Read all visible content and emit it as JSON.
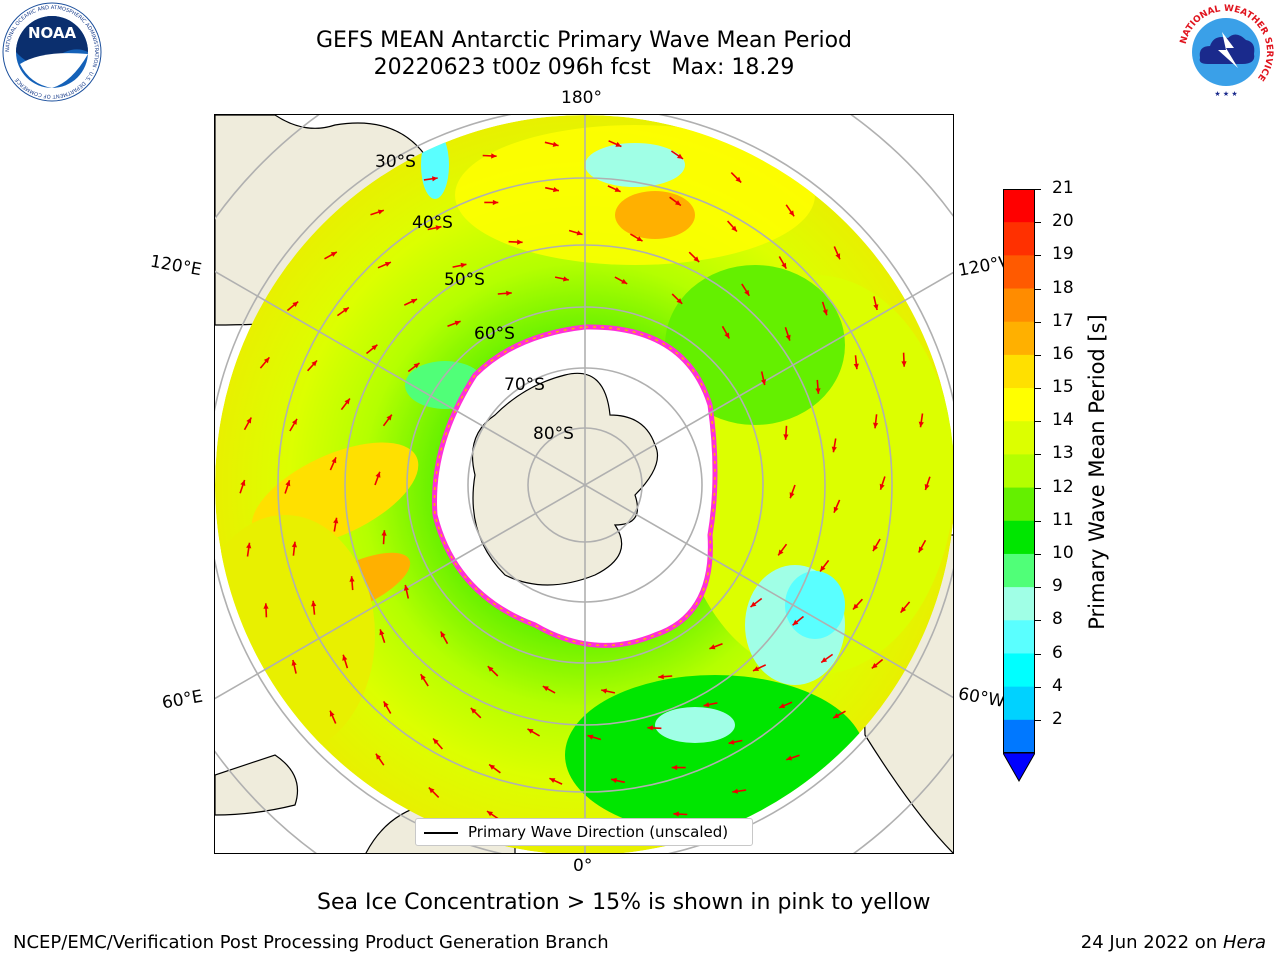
{
  "header": {
    "title_line1": "GEFS MEAN Antarctic Primary Wave Mean Period",
    "title_line2": "20220623 t00z 096h fcst   Max: 18.29"
  },
  "logos": {
    "noaa": "NOAA",
    "noaa_ring": "NATIONAL OCEANIC AND ATMOSPHERIC ADMINISTRATION · U.S. DEPARTMENT OF COMMERCE",
    "nws_ring": "NATIONAL WEATHER SERVICE"
  },
  "map": {
    "longitude_labels": {
      "top": "180°",
      "bottom": "0°",
      "left_upper": "120°E",
      "left_lower": "60°E",
      "right_upper": "120°W",
      "right_lower": "60°W"
    },
    "latitude_labels": [
      "30°S",
      "40°S",
      "50°S",
      "60°S",
      "70°S",
      "80°S"
    ],
    "legend_label": "Primary Wave Direction (unscaled)"
  },
  "colorbar": {
    "label": "Primary Wave Mean Period [s]",
    "ticks": [
      "21",
      "20",
      "19",
      "18",
      "17",
      "16",
      "15",
      "14",
      "13",
      "12",
      "11",
      "10",
      "9",
      "8",
      "6",
      "4",
      "2"
    ],
    "colors": [
      "#ff0000",
      "#ff3000",
      "#ff5a00",
      "#ff8c00",
      "#ffb000",
      "#ffe000",
      "#ffff00",
      "#dcff00",
      "#b4ff00",
      "#64f000",
      "#00e600",
      "#50ff78",
      "#a0ffe6",
      "#5affff",
      "#00ffff",
      "#00d2ff",
      "#0078ff"
    ],
    "extend_color": "#0000ff"
  },
  "note": "Sea Ice Concentration > 15% is shown in pink to yellow",
  "footer": {
    "left": "NCEP/EMC/Verification Post Processing Product Generation Branch",
    "right_prefix": "24 Jun 2022 on ",
    "right_machine": "Hera"
  }
}
